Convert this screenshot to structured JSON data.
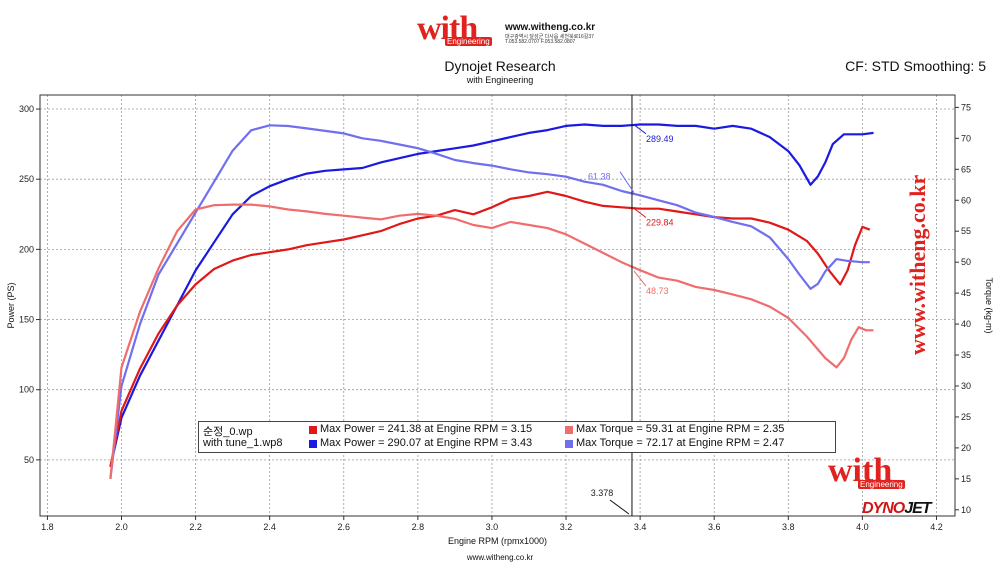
{
  "header": {
    "logo_word": "with",
    "logo_sub": "Engineering",
    "site": "www.witheng.co.kr",
    "site_sub": "대구광역시 달성군 다사읍 세천북로16길37 T.053.582.0707 F.053.582.0807"
  },
  "title": "Dynojet Research",
  "subtitle": "with Engineering",
  "cf_text": "CF: STD Smoothing: 5",
  "footer": "www.witheng.co.kr",
  "watermark": {
    "vertical": "www.witheng.co.kr",
    "logo_word": "with",
    "logo_sub": "Engineering",
    "dyno_a": "DYNO",
    "dyno_b": "JET"
  },
  "legend": {
    "file1": "순정_0.wp",
    "file2": "with tune_1.wp8",
    "e1": "Max Power = 241.38 at Engine RPM = 3.15",
    "e2": "Max Torque = 59.31 at Engine RPM = 2.35",
    "e3": "Max Power = 290.07 at Engine RPM = 3.43",
    "e4": "Max Torque = 72.17 at Engine RPM = 2.47"
  },
  "colors": {
    "stock_power": "#e01818",
    "stock_torque": "#ef6d6d",
    "tune_power": "#1a1ae0",
    "tune_torque": "#6f6fef"
  },
  "chart_data": {
    "type": "line",
    "xlabel": "Engine RPM (rpmx1000)",
    "ylabel": "Power (PS)",
    "y2label": "Torque (kg-m)",
    "xlim": [
      1.78,
      4.25
    ],
    "ylim": [
      10,
      310
    ],
    "y2lim": [
      9,
      77
    ],
    "xticks": [
      1.8,
      2.0,
      2.2,
      2.4,
      2.6,
      2.8,
      3.0,
      3.2,
      3.4,
      3.6,
      3.8,
      4.0,
      4.2
    ],
    "yticks": [
      50,
      100,
      150,
      200,
      250,
      300
    ],
    "y2ticks": [
      10,
      15,
      20,
      25,
      30,
      35,
      40,
      45,
      50,
      55,
      60,
      65,
      70,
      75
    ],
    "grid": true,
    "cursor": {
      "x": 3.378,
      "label": "3.378"
    },
    "series": [
      {
        "axis": "left",
        "color_key": "tune_power",
        "x": [
          1.97,
          2.0,
          2.05,
          2.1,
          2.15,
          2.2,
          2.25,
          2.3,
          2.35,
          2.4,
          2.45,
          2.5,
          2.55,
          2.6,
          2.65,
          2.7,
          2.75,
          2.8,
          2.85,
          2.9,
          2.95,
          3.0,
          3.05,
          3.1,
          3.15,
          3.2,
          3.25,
          3.3,
          3.35,
          3.4,
          3.45,
          3.5,
          3.55,
          3.6,
          3.65,
          3.7,
          3.75,
          3.8,
          3.83,
          3.86,
          3.88,
          3.9,
          3.92,
          3.95,
          4.0,
          4.03
        ],
        "y": [
          45,
          80,
          110,
          135,
          160,
          185,
          205,
          225,
          238,
          245,
          250,
          254,
          256,
          257,
          258,
          262,
          265,
          268,
          270,
          272,
          274,
          277,
          280,
          283,
          285,
          288,
          289,
          288,
          288,
          289,
          289,
          288,
          288,
          286,
          288,
          286,
          280,
          270,
          260,
          246,
          252,
          262,
          275,
          282,
          282,
          283
        ]
      },
      {
        "axis": "left",
        "color_key": "stock_power",
        "x": [
          1.97,
          2.0,
          2.05,
          2.1,
          2.15,
          2.2,
          2.25,
          2.3,
          2.35,
          2.4,
          2.45,
          2.5,
          2.55,
          2.6,
          2.65,
          2.7,
          2.75,
          2.8,
          2.85,
          2.9,
          2.95,
          3.0,
          3.05,
          3.1,
          3.15,
          3.2,
          3.25,
          3.3,
          3.35,
          3.4,
          3.45,
          3.5,
          3.55,
          3.6,
          3.65,
          3.7,
          3.75,
          3.8,
          3.85,
          3.88,
          3.91,
          3.94,
          3.96,
          3.98,
          4.0,
          4.02
        ],
        "y": [
          45,
          85,
          115,
          140,
          160,
          175,
          186,
          192,
          196,
          198,
          200,
          203,
          205,
          207,
          210,
          213,
          218,
          222,
          224,
          228,
          225,
          230,
          236,
          238,
          241,
          238,
          234,
          231,
          230,
          229,
          229,
          227,
          225,
          223,
          222,
          222,
          219,
          214,
          206,
          197,
          185,
          175,
          185,
          203,
          216,
          214
        ]
      },
      {
        "axis": "right",
        "color_key": "tune_torque",
        "x": [
          1.97,
          2.0,
          2.05,
          2.1,
          2.15,
          2.2,
          2.25,
          2.3,
          2.35,
          2.4,
          2.45,
          2.5,
          2.55,
          2.6,
          2.65,
          2.7,
          2.75,
          2.8,
          2.85,
          2.9,
          2.95,
          3.0,
          3.05,
          3.1,
          3.15,
          3.2,
          3.25,
          3.3,
          3.35,
          3.4,
          3.45,
          3.5,
          3.55,
          3.6,
          3.65,
          3.7,
          3.75,
          3.8,
          3.83,
          3.86,
          3.88,
          3.9,
          3.93,
          3.96,
          4.0,
          4.02
        ],
        "y": [
          15,
          30,
          40,
          48,
          53,
          58,
          63,
          68,
          71.3,
          72.1,
          72,
          71.6,
          71.2,
          70.8,
          70,
          69.6,
          69,
          68.4,
          67.5,
          66.5,
          66,
          65.6,
          65,
          64.5,
          64.2,
          63.8,
          63,
          62.5,
          61.5,
          60.8,
          60,
          59.2,
          58,
          57.3,
          56.5,
          55.8,
          54,
          50.5,
          48,
          45.7,
          46.5,
          48.5,
          50.5,
          50.2,
          50,
          50
        ]
      },
      {
        "axis": "right",
        "color_key": "stock_torque",
        "x": [
          1.97,
          2.0,
          2.05,
          2.1,
          2.15,
          2.2,
          2.25,
          2.3,
          2.35,
          2.4,
          2.45,
          2.5,
          2.55,
          2.6,
          2.65,
          2.7,
          2.75,
          2.8,
          2.85,
          2.9,
          2.95,
          3.0,
          3.05,
          3.1,
          3.15,
          3.2,
          3.25,
          3.3,
          3.35,
          3.4,
          3.45,
          3.5,
          3.55,
          3.6,
          3.65,
          3.7,
          3.75,
          3.8,
          3.85,
          3.9,
          3.93,
          3.95,
          3.97,
          3.99,
          4.01,
          4.03
        ],
        "y": [
          15,
          33,
          42,
          49,
          55,
          58.5,
          59.2,
          59.3,
          59.3,
          59,
          58.5,
          58.2,
          57.8,
          57.5,
          57.2,
          56.9,
          57.5,
          57.8,
          57.5,
          57,
          56,
          55.5,
          56.5,
          56,
          55.5,
          54.5,
          53,
          51.5,
          50,
          48.7,
          47.5,
          47,
          46,
          45.5,
          44.8,
          44,
          42.8,
          41,
          38,
          34.5,
          33,
          34.5,
          37.5,
          39.5,
          39,
          39
        ]
      }
    ],
    "annotations": [
      {
        "x": 3.378,
        "y": 289.49,
        "axis": "left",
        "text": "289.49",
        "color_key": "tune_power"
      },
      {
        "x": 3.378,
        "y": 229.84,
        "axis": "left",
        "text": "229.84",
        "color_key": "stock_power"
      },
      {
        "x": 3.378,
        "y": 61.38,
        "axis": "right",
        "text": "61.38",
        "color_key": "tune_torque"
      },
      {
        "x": 3.378,
        "y": 48.73,
        "axis": "right",
        "text": "48.73",
        "color_key": "stock_torque"
      }
    ]
  }
}
